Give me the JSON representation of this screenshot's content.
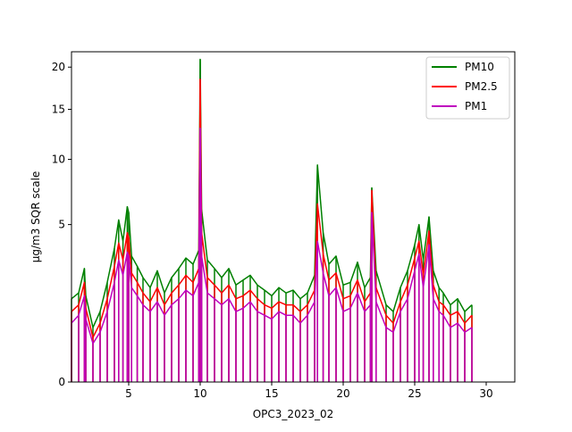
{
  "chart_data": {
    "type": "line",
    "xlabel": "OPC3_2023_02",
    "ylabel": "µg/m3 SQR scale",
    "y_scale": "sqrt",
    "xlim": [
      1,
      32
    ],
    "ylim": [
      0,
      22
    ],
    "x_ticks": [
      5,
      10,
      15,
      20,
      25,
      30
    ],
    "y_ticks": [
      0,
      5,
      10,
      15,
      20
    ],
    "legend_position": "top-right",
    "grid": false,
    "series": [
      {
        "name": "PM10",
        "color": "#008000",
        "x": [
          1.0,
          1.5,
          1.9,
          2.0,
          2.5,
          3.0,
          3.5,
          4.0,
          4.3,
          4.6,
          4.9,
          5.0,
          5.2,
          5.6,
          6.0,
          6.5,
          7.0,
          7.5,
          8.0,
          8.5,
          9.0,
          9.5,
          9.9,
          10.0,
          10.1,
          10.5,
          11.0,
          11.5,
          12.0,
          12.5,
          13.0,
          13.5,
          14.0,
          14.5,
          15.0,
          15.5,
          16.0,
          16.5,
          17.0,
          17.5,
          18.0,
          18.2,
          18.6,
          19.0,
          19.5,
          20.0,
          20.5,
          21.0,
          21.5,
          21.9,
          22.0,
          22.3,
          23.0,
          23.5,
          24.0,
          24.5,
          25.0,
          25.3,
          25.6,
          26.0,
          26.3,
          26.7,
          27.0,
          27.5,
          28.0,
          28.5,
          29.0
        ],
        "values": [
          1.4,
          1.6,
          2.6,
          1.5,
          0.6,
          1.0,
          2.0,
          3.6,
          5.3,
          4.0,
          6.2,
          5.8,
          3.2,
          2.7,
          2.2,
          1.8,
          2.5,
          1.6,
          2.2,
          2.6,
          3.1,
          2.8,
          3.5,
          21.0,
          6.0,
          3.0,
          2.6,
          2.2,
          2.6,
          1.9,
          2.1,
          2.3,
          1.9,
          1.7,
          1.5,
          1.8,
          1.6,
          1.7,
          1.4,
          1.6,
          2.3,
          9.5,
          4.5,
          2.8,
          3.2,
          1.9,
          2.0,
          2.9,
          1.8,
          2.2,
          7.6,
          2.5,
          1.2,
          1.0,
          1.8,
          2.5,
          3.8,
          5.0,
          3.0,
          5.5,
          2.5,
          1.8,
          1.6,
          1.2,
          1.4,
          1.0,
          1.2
        ]
      },
      {
        "name": "PM2.5",
        "color": "#ff0000",
        "x": [
          1.0,
          1.5,
          1.9,
          2.0,
          2.5,
          3.0,
          3.5,
          4.0,
          4.3,
          4.6,
          4.9,
          5.0,
          5.2,
          5.6,
          6.0,
          6.5,
          7.0,
          7.5,
          8.0,
          8.5,
          9.0,
          9.5,
          9.9,
          10.0,
          10.1,
          10.5,
          11.0,
          11.5,
          12.0,
          12.5,
          13.0,
          13.5,
          14.0,
          14.5,
          15.0,
          15.5,
          16.0,
          16.5,
          17.0,
          17.5,
          18.0,
          18.2,
          18.6,
          19.0,
          19.5,
          20.0,
          20.5,
          21.0,
          21.5,
          21.9,
          22.0,
          22.3,
          23.0,
          23.5,
          24.0,
          24.5,
          25.0,
          25.3,
          25.6,
          26.0,
          26.3,
          26.7,
          27.0,
          27.5,
          28.0,
          28.5,
          29.0
        ],
        "values": [
          1.0,
          1.2,
          2.0,
          1.1,
          0.4,
          0.7,
          1.4,
          2.7,
          3.9,
          3.0,
          4.5,
          4.2,
          2.4,
          2.0,
          1.6,
          1.3,
          1.8,
          1.2,
          1.6,
          1.9,
          2.3,
          2.0,
          2.6,
          18.5,
          4.5,
          2.2,
          1.9,
          1.6,
          1.9,
          1.4,
          1.5,
          1.7,
          1.4,
          1.2,
          1.1,
          1.3,
          1.2,
          1.2,
          1.0,
          1.2,
          1.7,
          6.4,
          3.3,
          2.1,
          2.4,
          1.4,
          1.5,
          2.1,
          1.3,
          1.6,
          7.4,
          1.8,
          0.9,
          0.7,
          1.3,
          1.9,
          3.1,
          4.0,
          2.3,
          4.6,
          1.9,
          1.3,
          1.2,
          0.9,
          1.0,
          0.7,
          0.9
        ]
      },
      {
        "name": "PM1",
        "color": "#bf00bf",
        "x": [
          1.0,
          1.5,
          1.9,
          2.0,
          2.5,
          3.0,
          3.5,
          4.0,
          4.3,
          4.6,
          4.9,
          5.0,
          5.2,
          5.6,
          6.0,
          6.5,
          7.0,
          7.5,
          8.0,
          8.5,
          9.0,
          9.5,
          9.9,
          10.0,
          10.1,
          10.5,
          11.0,
          11.5,
          12.0,
          12.5,
          13.0,
          13.5,
          14.0,
          14.5,
          15.0,
          15.5,
          16.0,
          16.5,
          17.0,
          17.5,
          18.0,
          18.2,
          18.6,
          19.0,
          19.5,
          20.0,
          20.5,
          21.0,
          21.5,
          21.9,
          22.0,
          22.3,
          23.0,
          23.5,
          24.0,
          24.5,
          25.0,
          25.3,
          25.6,
          26.0,
          26.3,
          26.7,
          27.0,
          27.5,
          28.0,
          28.5,
          29.0
        ],
        "values": [
          0.7,
          0.9,
          1.5,
          0.8,
          0.3,
          0.5,
          1.0,
          2.0,
          3.0,
          2.3,
          3.4,
          3.2,
          1.8,
          1.5,
          1.2,
          1.0,
          1.3,
          0.9,
          1.2,
          1.4,
          1.7,
          1.5,
          2.0,
          13.0,
          3.2,
          1.6,
          1.4,
          1.2,
          1.4,
          1.0,
          1.1,
          1.3,
          1.0,
          0.9,
          0.8,
          1.0,
          0.9,
          0.9,
          0.7,
          0.9,
          1.3,
          4.0,
          2.4,
          1.5,
          1.8,
          1.0,
          1.1,
          1.6,
          1.0,
          1.2,
          5.8,
          1.3,
          0.6,
          0.5,
          1.0,
          1.4,
          2.5,
          3.3,
          1.8,
          3.8,
          1.4,
          1.0,
          0.9,
          0.6,
          0.7,
          0.5,
          0.6
        ]
      }
    ]
  }
}
